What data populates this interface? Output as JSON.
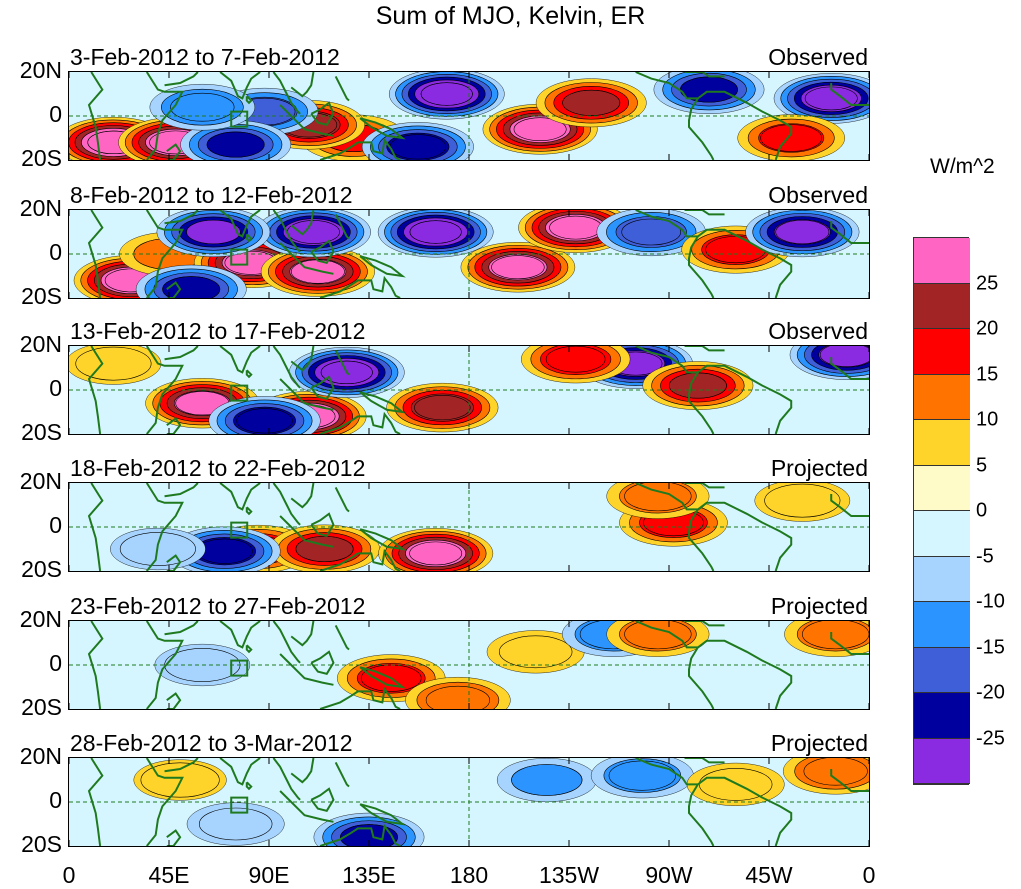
{
  "title": "Sum of MJO, Kelvin, ER",
  "panels": [
    {
      "date": "3-Feb-2012 to 7-Feb-2012",
      "kind": "Observed"
    },
    {
      "date": "8-Feb-2012 to 12-Feb-2012",
      "kind": "Observed"
    },
    {
      "date": "13-Feb-2012 to 17-Feb-2012",
      "kind": "Observed"
    },
    {
      "date": "18-Feb-2012 to 22-Feb-2012",
      "kind": "Projected"
    },
    {
      "date": "23-Feb-2012 to 27-Feb-2012",
      "kind": "Projected"
    },
    {
      "date": "28-Feb-2012 to 3-Mar-2012",
      "kind": "Projected"
    }
  ],
  "lat_labels": [
    "20N",
    "0",
    "20S"
  ],
  "lon_labels": [
    "0",
    "45E",
    "90E",
    "135E",
    "180",
    "135W",
    "90W",
    "45W",
    "0"
  ],
  "colorbar": {
    "units": "W/m^2",
    "ticks": [
      "25",
      "20",
      "15",
      "10",
      "5",
      "0",
      "-5",
      "-10",
      "-15",
      "-20",
      "-25"
    ],
    "colors": [
      "#ff66c4",
      "#a32424",
      "#ff0000",
      "#ff7400",
      "#ffd42a",
      "#fffbc8",
      "#d6f6ff",
      "#a6d4ff",
      "#2c94ff",
      "#3f5fd9",
      "#00009e",
      "#8a2be2"
    ]
  },
  "chart_data": {
    "type": "heatmap",
    "title": "Sum of MJO, Kelvin, ER",
    "xlabel": "Longitude",
    "ylabel": "Latitude",
    "x_range": [
      0,
      360
    ],
    "y_range": [
      -20,
      20
    ],
    "levels": [
      -25,
      -20,
      -15,
      -10,
      -5,
      0,
      5,
      10,
      15,
      20,
      25
    ],
    "units": "W/m^2",
    "panels": [
      {
        "period": "3-Feb-2012 to 7-Feb-2012",
        "type": "Observed",
        "features": [
          {
            "lon": 20,
            "lat": -12,
            "value": 30
          },
          {
            "lon": 48,
            "lat": -12,
            "value": 28
          },
          {
            "lon": 128,
            "lat": -10,
            "value": 15
          },
          {
            "lon": 108,
            "lat": -4,
            "value": 22
          },
          {
            "lon": 88,
            "lat": 2,
            "value": -16
          },
          {
            "lon": 75,
            "lat": -13,
            "value": -20
          },
          {
            "lon": 170,
            "lat": 10,
            "value": -30
          },
          {
            "lon": 157,
            "lat": -14,
            "value": -22
          },
          {
            "lon": 212,
            "lat": -6,
            "value": 28
          },
          {
            "lon": 235,
            "lat": 6,
            "value": 20
          },
          {
            "lon": 288,
            "lat": 12,
            "value": -20
          },
          {
            "lon": 343,
            "lat": 8,
            "value": -28
          },
          {
            "lon": 325,
            "lat": -10,
            "value": 16
          },
          {
            "lon": 60,
            "lat": 4,
            "value": -14
          }
        ]
      },
      {
        "period": "8-Feb-2012 to 12-Feb-2012",
        "type": "Observed",
        "features": [
          {
            "lon": 28,
            "lat": -12,
            "value": 28
          },
          {
            "lon": 45,
            "lat": 0,
            "value": 10
          },
          {
            "lon": 82,
            "lat": -4,
            "value": 27
          },
          {
            "lon": 112,
            "lat": -8,
            "value": 26
          },
          {
            "lon": 110,
            "lat": 10,
            "value": -28
          },
          {
            "lon": 65,
            "lat": 10,
            "value": -25
          },
          {
            "lon": 55,
            "lat": -16,
            "value": -20
          },
          {
            "lon": 165,
            "lat": 10,
            "value": -30
          },
          {
            "lon": 202,
            "lat": -6,
            "value": 27
          },
          {
            "lon": 228,
            "lat": 12,
            "value": 28
          },
          {
            "lon": 262,
            "lat": 10,
            "value": -18
          },
          {
            "lon": 300,
            "lat": 2,
            "value": 17
          },
          {
            "lon": 330,
            "lat": 10,
            "value": -26
          }
        ]
      },
      {
        "period": "13-Feb-2012 to 17-Feb-2012",
        "type": "Observed",
        "features": [
          {
            "lon": 20,
            "lat": 12,
            "value": 8
          },
          {
            "lon": 60,
            "lat": -6,
            "value": 26
          },
          {
            "lon": 108,
            "lat": -12,
            "value": 28
          },
          {
            "lon": 168,
            "lat": -8,
            "value": 22
          },
          {
            "lon": 125,
            "lat": 8,
            "value": -30
          },
          {
            "lon": 255,
            "lat": 12,
            "value": -27
          },
          {
            "lon": 228,
            "lat": 14,
            "value": 18
          },
          {
            "lon": 283,
            "lat": 2,
            "value": 20
          },
          {
            "lon": 88,
            "lat": -14,
            "value": -22
          },
          {
            "lon": 350,
            "lat": 16,
            "value": -26
          }
        ]
      },
      {
        "period": "18-Feb-2012 to 22-Feb-2012",
        "type": "Projected",
        "features": [
          {
            "lon": 85,
            "lat": -10,
            "value": 18
          },
          {
            "lon": 115,
            "lat": -10,
            "value": 20
          },
          {
            "lon": 165,
            "lat": -12,
            "value": 28
          },
          {
            "lon": 70,
            "lat": -11,
            "value": -22
          },
          {
            "lon": 272,
            "lat": 2,
            "value": 17
          },
          {
            "lon": 265,
            "lat": 14,
            "value": 12
          },
          {
            "lon": 40,
            "lat": -10,
            "value": -8
          },
          {
            "lon": 330,
            "lat": 12,
            "value": 8
          }
        ]
      },
      {
        "period": "23-Feb-2012 to 27-Feb-2012",
        "type": "Projected",
        "features": [
          {
            "lon": 145,
            "lat": -6,
            "value": 17
          },
          {
            "lon": 175,
            "lat": -16,
            "value": 14
          },
          {
            "lon": 210,
            "lat": 6,
            "value": 9
          },
          {
            "lon": 245,
            "lat": 14,
            "value": -12
          },
          {
            "lon": 265,
            "lat": 14,
            "value": 12
          },
          {
            "lon": 345,
            "lat": 14,
            "value": 12
          },
          {
            "lon": 60,
            "lat": 0,
            "value": -8
          }
        ]
      },
      {
        "period": "28-Feb-2012 to 3-Mar-2012",
        "type": "Projected",
        "features": [
          {
            "lon": 135,
            "lat": -16,
            "value": -20
          },
          {
            "lon": 75,
            "lat": -10,
            "value": -9
          },
          {
            "lon": 50,
            "lat": 10,
            "value": 7
          },
          {
            "lon": 215,
            "lat": 10,
            "value": -10
          },
          {
            "lon": 258,
            "lat": 12,
            "value": -12
          },
          {
            "lon": 300,
            "lat": 8,
            "value": 9
          },
          {
            "lon": 345,
            "lat": 14,
            "value": 14
          }
        ]
      }
    ]
  }
}
